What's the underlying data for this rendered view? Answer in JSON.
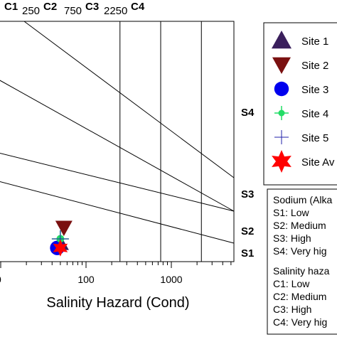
{
  "chart_data": {
    "type": "scatter",
    "xlabel": "Salinity Hazard (Cond)",
    "x_scale": "log",
    "xlim": [
      10,
      5000
    ],
    "x_ticks": [
      {
        "value": 100,
        "label": "100"
      },
      {
        "value": 1000,
        "label": "1000"
      }
    ],
    "x_tick_partial_left": "0",
    "grid": false,
    "salinity_boundaries": [
      {
        "value": 250,
        "label": "250"
      },
      {
        "value": 750,
        "label": "750"
      },
      {
        "value": 2250,
        "label": "2250"
      }
    ],
    "salinity_classes": [
      "C1",
      "C2",
      "C3",
      "C4"
    ],
    "sodium_classes": [
      "S4",
      "S3",
      "S2",
      "S1"
    ],
    "legend_position": "right",
    "series": [
      {
        "name": "Site 1",
        "marker": "triangle-up",
        "color": "#3a1f5c",
        "x": 50,
        "y": 1.2
      },
      {
        "name": "Site 2",
        "marker": "triangle-down",
        "color": "#7a1010",
        "x": 55,
        "y": 1.6
      },
      {
        "name": "Site 3",
        "marker": "circle",
        "color": "#0000ee",
        "x": 46,
        "y": 1.1
      },
      {
        "name": "Site 4",
        "marker": "cross-dot",
        "color": "#22dd66",
        "x": 50,
        "y": 1.3
      },
      {
        "name": "Site 5",
        "marker": "plus",
        "color": "#2222aa",
        "x": 50,
        "y": 1.3
      },
      {
        "name": "Site Av",
        "marker": "star",
        "color": "#ff0000",
        "x": 50,
        "y": 1.1
      }
    ],
    "legend_notes": {
      "sodium_title": "Sodium (Alka",
      "sodium_items": [
        "S1: Low",
        "S2: Medium",
        "S3: High",
        "S4: Very hig"
      ],
      "salinity_title": "Salinity haza",
      "salinity_items": [
        "C1: Low",
        "C2: Medium",
        "C3: High",
        "C4: Very hig"
      ]
    }
  }
}
